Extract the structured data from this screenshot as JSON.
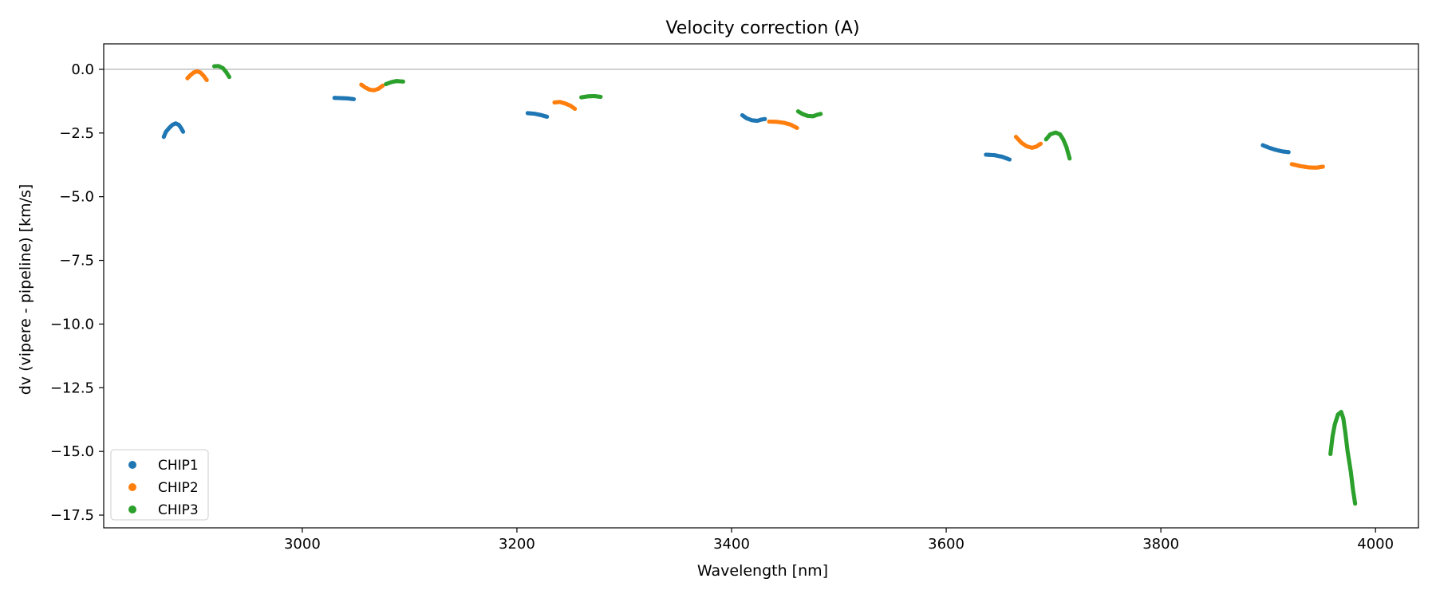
{
  "chart_data": {
    "type": "scatter",
    "title": "Velocity correction (A)",
    "xlabel": "Wavelength [nm]",
    "ylabel": "dv (vipere - pipeline) [km/s]",
    "xlim": [
      2815,
      4040
    ],
    "ylim": [
      -18.0,
      1.0
    ],
    "xticks": [
      3000,
      3200,
      3400,
      3600,
      3800,
      4000
    ],
    "yticks": [
      0.0,
      -2.5,
      -5.0,
      -7.5,
      -10.0,
      -12.5,
      -15.0,
      -17.5
    ],
    "xtick_labels": [
      "3000",
      "3200",
      "3400",
      "3600",
      "3800",
      "4000"
    ],
    "ytick_labels": [
      "0.0",
      "−2.5",
      "−5.0",
      "−7.5",
      "−10.0",
      "−12.5",
      "−15.0",
      "−17.5"
    ],
    "reference_line_y": 0.0,
    "grid": false,
    "legend_position": "lower-left",
    "colors": {
      "CHIP1": "#1f77b4",
      "CHIP2": "#ff7f0e",
      "CHIP3": "#2ca02c",
      "reference": "#aaaaaa"
    },
    "series": [
      {
        "name": "CHIP1",
        "segments": [
          [
            [
              2871,
              -2.65
            ],
            [
              2873,
              -2.45
            ],
            [
              2876,
              -2.3
            ],
            [
              2879,
              -2.18
            ],
            [
              2882,
              -2.12
            ],
            [
              2885,
              -2.18
            ],
            [
              2887,
              -2.3
            ],
            [
              2889,
              -2.45
            ]
          ],
          [
            [
              3030,
              -1.12
            ],
            [
              3036,
              -1.13
            ],
            [
              3042,
              -1.14
            ],
            [
              3048,
              -1.17
            ]
          ],
          [
            [
              3210,
              -1.72
            ],
            [
              3216,
              -1.74
            ],
            [
              3222,
              -1.79
            ],
            [
              3228,
              -1.86
            ]
          ],
          [
            [
              3410,
              -1.8
            ],
            [
              3414,
              -1.92
            ],
            [
              3419,
              -2.0
            ],
            [
              3424,
              -2.02
            ],
            [
              3428,
              -1.97
            ],
            [
              3431,
              -1.95
            ]
          ],
          [
            [
              3637,
              -3.35
            ],
            [
              3645,
              -3.37
            ],
            [
              3652,
              -3.43
            ],
            [
              3659,
              -3.54
            ]
          ],
          [
            [
              3895,
              -2.98
            ],
            [
              3901,
              -3.08
            ],
            [
              3907,
              -3.16
            ],
            [
              3913,
              -3.22
            ],
            [
              3919,
              -3.25
            ]
          ]
        ]
      },
      {
        "name": "CHIP2",
        "segments": [
          [
            [
              2893,
              -0.35
            ],
            [
              2896,
              -0.22
            ],
            [
              2899,
              -0.12
            ],
            [
              2902,
              -0.08
            ],
            [
              2905,
              -0.12
            ],
            [
              2908,
              -0.25
            ],
            [
              2911,
              -0.42
            ]
          ],
          [
            [
              3055,
              -0.6
            ],
            [
              3059,
              -0.72
            ],
            [
              3063,
              -0.8
            ],
            [
              3067,
              -0.82
            ],
            [
              3071,
              -0.76
            ],
            [
              3075,
              -0.64
            ]
          ],
          [
            [
              3235,
              -1.3
            ],
            [
              3240,
              -1.28
            ],
            [
              3245,
              -1.34
            ],
            [
              3250,
              -1.43
            ],
            [
              3254,
              -1.55
            ]
          ],
          [
            [
              3435,
              -2.05
            ],
            [
              3442,
              -2.06
            ],
            [
              3449,
              -2.1
            ],
            [
              3455,
              -2.17
            ],
            [
              3461,
              -2.3
            ]
          ],
          [
            [
              3665,
              -2.65
            ],
            [
              3670,
              -2.88
            ],
            [
              3675,
              -3.02
            ],
            [
              3680,
              -3.08
            ],
            [
              3684,
              -3.03
            ],
            [
              3688,
              -2.92
            ]
          ],
          [
            [
              3922,
              -3.72
            ],
            [
              3930,
              -3.8
            ],
            [
              3938,
              -3.85
            ],
            [
              3945,
              -3.86
            ],
            [
              3951,
              -3.82
            ]
          ]
        ]
      },
      {
        "name": "CHIP3",
        "segments": [
          [
            [
              2918,
              0.12
            ],
            [
              2922,
              0.13
            ],
            [
              2926,
              0.05
            ],
            [
              2929,
              -0.1
            ],
            [
              2932,
              -0.3
            ]
          ],
          [
            [
              3078,
              -0.58
            ],
            [
              3083,
              -0.5
            ],
            [
              3088,
              -0.46
            ],
            [
              3094,
              -0.48
            ]
          ],
          [
            [
              3260,
              -1.1
            ],
            [
              3266,
              -1.06
            ],
            [
              3272,
              -1.05
            ],
            [
              3278,
              -1.08
            ]
          ],
          [
            [
              3462,
              -1.65
            ],
            [
              3466,
              -1.75
            ],
            [
              3471,
              -1.83
            ],
            [
              3476,
              -1.84
            ],
            [
              3480,
              -1.78
            ],
            [
              3483,
              -1.75
            ]
          ],
          [
            [
              3693,
              -2.75
            ],
            [
              3697,
              -2.55
            ],
            [
              3702,
              -2.48
            ],
            [
              3706,
              -2.55
            ],
            [
              3709,
              -2.75
            ],
            [
              3712,
              -3.05
            ],
            [
              3715,
              -3.5
            ]
          ],
          [
            [
              3958,
              -15.1
            ],
            [
              3960,
              -14.4
            ],
            [
              3962,
              -13.95
            ],
            [
              3965,
              -13.55
            ],
            [
              3968,
              -13.45
            ],
            [
              3970,
              -13.7
            ],
            [
              3972,
              -14.3
            ],
            [
              3974,
              -15.0
            ],
            [
              3977,
              -15.8
            ],
            [
              3979,
              -16.5
            ],
            [
              3981,
              -17.05
            ]
          ]
        ]
      }
    ]
  }
}
